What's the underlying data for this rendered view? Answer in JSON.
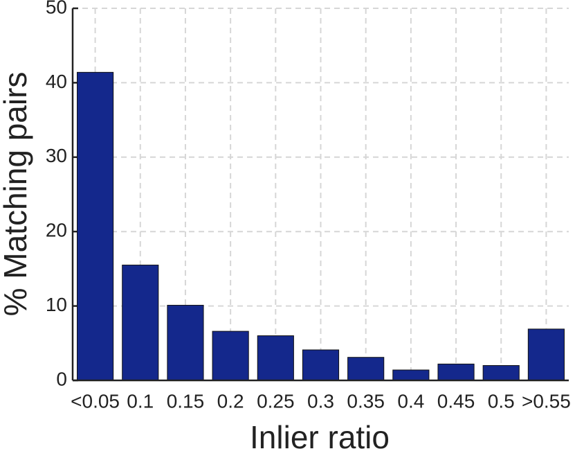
{
  "chart_data": {
    "type": "bar",
    "x_label": "Inlier ratio",
    "y_label": "% Matching pairs",
    "categories": [
      "<0.05",
      "0.1",
      "0.15",
      "0.2",
      "0.25",
      "0.3",
      "0.35",
      "0.4",
      "0.45",
      "0.5",
      ">0.55"
    ],
    "values": [
      41.4,
      15.5,
      10.1,
      6.6,
      6.0,
      4.1,
      3.1,
      1.4,
      2.2,
      2.0,
      6.9
    ],
    "color": "#14288c",
    "ylim": [
      0,
      50
    ],
    "yticks": [
      0,
      10,
      20,
      30,
      40,
      50
    ],
    "grid": true
  }
}
